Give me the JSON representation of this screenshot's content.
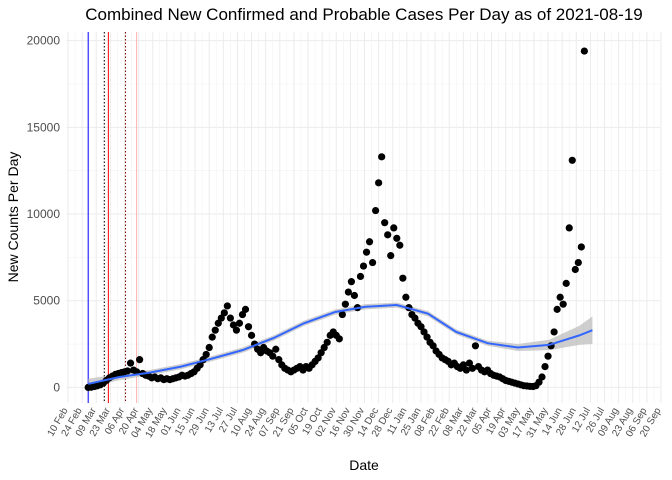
{
  "chart_data": {
    "type": "scatter",
    "title": "Combined New Confirmed and Probable Cases Per Day as of 2021-08-19",
    "xlabel": "Date",
    "ylabel": "New Counts Per Day",
    "xlim": [
      "2020-02-08",
      "2021-09-19"
    ],
    "ylim": [
      -900,
      20500
    ],
    "yticks": [
      0,
      5000,
      10000,
      15000,
      20000
    ],
    "xticks": [
      {
        "date": "2020-02-10",
        "label": "10 Feb"
      },
      {
        "date": "2020-02-24",
        "label": "24 Feb"
      },
      {
        "date": "2020-03-09",
        "label": "09 Mar"
      },
      {
        "date": "2020-03-23",
        "label": "23 Mar"
      },
      {
        "date": "2020-04-06",
        "label": "06 Apr"
      },
      {
        "date": "2020-04-20",
        "label": "20 Apr"
      },
      {
        "date": "2020-05-04",
        "label": "04 May"
      },
      {
        "date": "2020-05-18",
        "label": "18 May"
      },
      {
        "date": "2020-06-01",
        "label": "01 Jun"
      },
      {
        "date": "2020-06-15",
        "label": "15 Jun"
      },
      {
        "date": "2020-06-29",
        "label": "29 Jun"
      },
      {
        "date": "2020-07-13",
        "label": "13 Jul"
      },
      {
        "date": "2020-07-27",
        "label": "27 Jul"
      },
      {
        "date": "2020-08-10",
        "label": "10 Aug"
      },
      {
        "date": "2020-08-24",
        "label": "24 Aug"
      },
      {
        "date": "2020-09-07",
        "label": "07 Sep"
      },
      {
        "date": "2020-09-21",
        "label": "21 Sep"
      },
      {
        "date": "2020-10-05",
        "label": "05 Oct"
      },
      {
        "date": "2020-10-19",
        "label": "19 Oct"
      },
      {
        "date": "2020-11-02",
        "label": "02 Nov"
      },
      {
        "date": "2020-11-16",
        "label": "16 Nov"
      },
      {
        "date": "2020-11-30",
        "label": "30 Nov"
      },
      {
        "date": "2020-12-14",
        "label": "14 Dec"
      },
      {
        "date": "2020-12-28",
        "label": "28 Dec"
      },
      {
        "date": "2021-01-11",
        "label": "11 Jan"
      },
      {
        "date": "2021-01-25",
        "label": "25 Jan"
      },
      {
        "date": "2021-02-08",
        "label": "08 Feb"
      },
      {
        "date": "2021-02-22",
        "label": "22 Feb"
      },
      {
        "date": "2021-03-08",
        "label": "08 Mar"
      },
      {
        "date": "2021-03-22",
        "label": "22 Mar"
      },
      {
        "date": "2021-04-05",
        "label": "05 Apr"
      },
      {
        "date": "2021-04-19",
        "label": "19 Apr"
      },
      {
        "date": "2021-05-03",
        "label": "03 May"
      },
      {
        "date": "2021-05-17",
        "label": "17 May"
      },
      {
        "date": "2021-05-31",
        "label": "31 May"
      },
      {
        "date": "2021-06-14",
        "label": "14 Jun"
      },
      {
        "date": "2021-06-28",
        "label": "28 Jun"
      },
      {
        "date": "2021-07-12",
        "label": "12 Jul"
      },
      {
        "date": "2021-07-26",
        "label": "26 Jul"
      },
      {
        "date": "2021-08-09",
        "label": "09 Aug"
      },
      {
        "date": "2021-08-23",
        "label": "23 Aug"
      },
      {
        "date": "2021-09-06",
        "label": "06 Sep"
      },
      {
        "date": "2021-09-20",
        "label": "20 Sep"
      }
    ],
    "grid": true,
    "reference_lines": [
      {
        "date": "2020-03-01",
        "color": "#0000ff",
        "style": "solid"
      },
      {
        "date": "2020-03-17",
        "color": "#000000",
        "style": "dotted"
      },
      {
        "date": "2020-03-21",
        "color": "#ff0000",
        "style": "solid"
      },
      {
        "date": "2020-04-07",
        "color": "#800000",
        "style": "dotted"
      },
      {
        "date": "2020-04-18",
        "color": "#ffb0b0",
        "style": "solid"
      }
    ],
    "series": [
      {
        "kind": "points",
        "color": "#000000",
        "points": [
          [
            "2020-03-01",
            0
          ],
          [
            "2020-03-04",
            10
          ],
          [
            "2020-03-07",
            50
          ],
          [
            "2020-03-10",
            90
          ],
          [
            "2020-03-13",
            150
          ],
          [
            "2020-03-16",
            250
          ],
          [
            "2020-03-19",
            400
          ],
          [
            "2020-03-22",
            550
          ],
          [
            "2020-03-25",
            650
          ],
          [
            "2020-03-28",
            750
          ],
          [
            "2020-03-31",
            800
          ],
          [
            "2020-04-03",
            850
          ],
          [
            "2020-04-06",
            900
          ],
          [
            "2020-04-09",
            950
          ],
          [
            "2020-04-12",
            1400
          ],
          [
            "2020-04-15",
            1000
          ],
          [
            "2020-04-18",
            900
          ],
          [
            "2020-04-21",
            1600
          ],
          [
            "2020-04-24",
            800
          ],
          [
            "2020-04-27",
            700
          ],
          [
            "2020-04-30",
            650
          ],
          [
            "2020-05-03",
            550
          ],
          [
            "2020-05-06",
            600
          ],
          [
            "2020-05-09",
            500
          ],
          [
            "2020-05-12",
            550
          ],
          [
            "2020-05-15",
            450
          ],
          [
            "2020-05-18",
            500
          ],
          [
            "2020-05-21",
            450
          ],
          [
            "2020-05-24",
            500
          ],
          [
            "2020-05-27",
            550
          ],
          [
            "2020-05-30",
            600
          ],
          [
            "2020-06-02",
            700
          ],
          [
            "2020-06-05",
            650
          ],
          [
            "2020-06-08",
            700
          ],
          [
            "2020-06-11",
            800
          ],
          [
            "2020-06-14",
            900
          ],
          [
            "2020-06-17",
            1100
          ],
          [
            "2020-06-20",
            1300
          ],
          [
            "2020-06-23",
            1600
          ],
          [
            "2020-06-26",
            1900
          ],
          [
            "2020-06-29",
            2300
          ],
          [
            "2020-07-02",
            2900
          ],
          [
            "2020-07-05",
            3300
          ],
          [
            "2020-07-08",
            3700
          ],
          [
            "2020-07-11",
            4000
          ],
          [
            "2020-07-14",
            4300
          ],
          [
            "2020-07-17",
            4700
          ],
          [
            "2020-07-20",
            4000
          ],
          [
            "2020-07-23",
            3600
          ],
          [
            "2020-07-26",
            3300
          ],
          [
            "2020-07-29",
            3700
          ],
          [
            "2020-08-01",
            4200
          ],
          [
            "2020-08-04",
            4500
          ],
          [
            "2020-08-07",
            3500
          ],
          [
            "2020-08-10",
            3000
          ],
          [
            "2020-08-13",
            2500
          ],
          [
            "2020-08-16",
            2200
          ],
          [
            "2020-08-19",
            2000
          ],
          [
            "2020-08-22",
            2300
          ],
          [
            "2020-08-25",
            2100
          ],
          [
            "2020-08-28",
            2000
          ],
          [
            "2020-08-31",
            1800
          ],
          [
            "2020-09-03",
            2200
          ],
          [
            "2020-09-06",
            1600
          ],
          [
            "2020-09-09",
            1300
          ],
          [
            "2020-09-12",
            1100
          ],
          [
            "2020-09-15",
            1000
          ],
          [
            "2020-09-18",
            900
          ],
          [
            "2020-09-21",
            1000
          ],
          [
            "2020-09-24",
            1100
          ],
          [
            "2020-09-27",
            1200
          ],
          [
            "2020-09-30",
            1000
          ],
          [
            "2020-10-03",
            1200
          ],
          [
            "2020-10-06",
            1100
          ],
          [
            "2020-10-09",
            1300
          ],
          [
            "2020-10-12",
            1500
          ],
          [
            "2020-10-15",
            1700
          ],
          [
            "2020-10-18",
            2000
          ],
          [
            "2020-10-21",
            2300
          ],
          [
            "2020-10-24",
            2600
          ],
          [
            "2020-10-27",
            3000
          ],
          [
            "2020-10-30",
            3200
          ],
          [
            "2020-11-02",
            3000
          ],
          [
            "2020-11-05",
            2800
          ],
          [
            "2020-11-08",
            4200
          ],
          [
            "2020-11-11",
            4800
          ],
          [
            "2020-11-14",
            5500
          ],
          [
            "2020-11-17",
            6100
          ],
          [
            "2020-11-20",
            5300
          ],
          [
            "2020-11-23",
            4600
          ],
          [
            "2020-11-26",
            6400
          ],
          [
            "2020-11-29",
            7000
          ],
          [
            "2020-12-02",
            7800
          ],
          [
            "2020-12-05",
            8400
          ],
          [
            "2020-12-08",
            7200
          ],
          [
            "2020-12-11",
            10200
          ],
          [
            "2020-12-14",
            11800
          ],
          [
            "2020-12-17",
            13300
          ],
          [
            "2020-12-20",
            9500
          ],
          [
            "2020-12-23",
            8800
          ],
          [
            "2020-12-26",
            7600
          ],
          [
            "2020-12-29",
            9200
          ],
          [
            "2021-01-01",
            8600
          ],
          [
            "2021-01-04",
            8200
          ],
          [
            "2021-01-07",
            6300
          ],
          [
            "2021-01-10",
            5200
          ],
          [
            "2021-01-13",
            4600
          ],
          [
            "2021-01-16",
            4200
          ],
          [
            "2021-01-19",
            4000
          ],
          [
            "2021-01-22",
            3700
          ],
          [
            "2021-01-25",
            3500
          ],
          [
            "2021-01-28",
            3200
          ],
          [
            "2021-01-31",
            2900
          ],
          [
            "2021-02-03",
            2600
          ],
          [
            "2021-02-06",
            2400
          ],
          [
            "2021-02-09",
            2100
          ],
          [
            "2021-02-12",
            1900
          ],
          [
            "2021-02-15",
            1700
          ],
          [
            "2021-02-18",
            1600
          ],
          [
            "2021-02-21",
            1500
          ],
          [
            "2021-02-24",
            1300
          ],
          [
            "2021-02-27",
            1400
          ],
          [
            "2021-03-02",
            1200
          ],
          [
            "2021-03-05",
            1100
          ],
          [
            "2021-03-08",
            1300
          ],
          [
            "2021-03-11",
            1000
          ],
          [
            "2021-03-14",
            1400
          ],
          [
            "2021-03-17",
            1100
          ],
          [
            "2021-03-20",
            2400
          ],
          [
            "2021-03-23",
            1200
          ],
          [
            "2021-03-26",
            1000
          ],
          [
            "2021-03-29",
            900
          ],
          [
            "2021-04-01",
            1000
          ],
          [
            "2021-04-04",
            800
          ],
          [
            "2021-04-07",
            700
          ],
          [
            "2021-04-10",
            650
          ],
          [
            "2021-04-13",
            600
          ],
          [
            "2021-04-16",
            500
          ],
          [
            "2021-04-19",
            400
          ],
          [
            "2021-04-22",
            350
          ],
          [
            "2021-04-25",
            300
          ],
          [
            "2021-04-28",
            250
          ],
          [
            "2021-05-01",
            200
          ],
          [
            "2021-05-04",
            150
          ],
          [
            "2021-05-07",
            100
          ],
          [
            "2021-05-10",
            80
          ],
          [
            "2021-05-13",
            60
          ],
          [
            "2021-05-16",
            50
          ],
          [
            "2021-05-19",
            100
          ],
          [
            "2021-05-22",
            300
          ],
          [
            "2021-05-25",
            600
          ],
          [
            "2021-05-28",
            1200
          ],
          [
            "2021-05-31",
            1800
          ],
          [
            "2021-06-03",
            2400
          ],
          [
            "2021-06-06",
            3200
          ],
          [
            "2021-06-09",
            4500
          ],
          [
            "2021-06-12",
            5200
          ],
          [
            "2021-06-15",
            4800
          ],
          [
            "2021-06-18",
            6000
          ],
          [
            "2021-06-21",
            9200
          ],
          [
            "2021-06-24",
            13100
          ],
          [
            "2021-06-27",
            6800
          ],
          [
            "2021-06-30",
            7200
          ],
          [
            "2021-07-03",
            8100
          ],
          [
            "2021-07-06",
            19400
          ]
        ]
      },
      {
        "kind": "smooth",
        "color": "#3366ff",
        "band_color": "#bdbdbd",
        "points": [
          [
            "2020-03-01",
            200,
            0,
            500
          ],
          [
            "2020-04-01",
            600,
            420,
            780
          ],
          [
            "2020-05-01",
            850,
            700,
            1000
          ],
          [
            "2020-06-01",
            1200,
            1050,
            1350
          ],
          [
            "2020-07-01",
            1650,
            1500,
            1800
          ],
          [
            "2020-08-01",
            2150,
            2000,
            2300
          ],
          [
            "2020-09-01",
            2850,
            2700,
            3000
          ],
          [
            "2020-10-01",
            3700,
            3550,
            3850
          ],
          [
            "2020-11-01",
            4350,
            4200,
            4500
          ],
          [
            "2020-12-01",
            4650,
            4500,
            4800
          ],
          [
            "2021-01-01",
            4750,
            4600,
            4900
          ],
          [
            "2021-02-01",
            4250,
            4100,
            4400
          ],
          [
            "2021-03-01",
            3200,
            3050,
            3350
          ],
          [
            "2021-04-01",
            2550,
            2400,
            2700
          ],
          [
            "2021-05-01",
            2300,
            2100,
            2500
          ],
          [
            "2021-06-01",
            2450,
            2150,
            2750
          ],
          [
            "2021-07-01",
            3000,
            2450,
            3550
          ],
          [
            "2021-07-14",
            3300,
            2500,
            4100
          ]
        ]
      }
    ]
  }
}
